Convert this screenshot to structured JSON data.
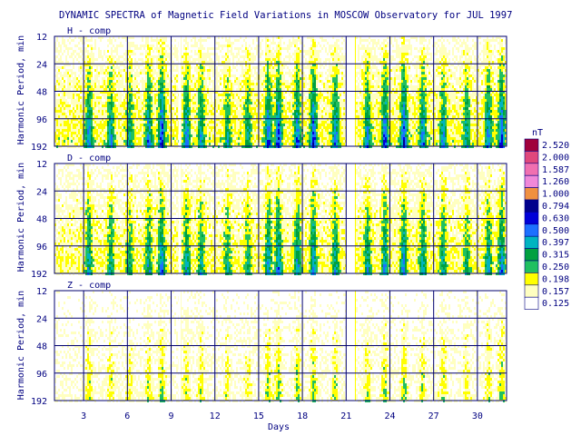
{
  "chart_data": {
    "type": "heatmap",
    "title": "DYNAMIC SPECTRA of Magnetic Field Variations in MOSCOW Observatory for JUL 1997",
    "xlabel": "Days",
    "ylabel": "Harmonic Period, min",
    "x_ticks": [
      "3",
      "6",
      "9",
      "12",
      "15",
      "18",
      "21",
      "24",
      "27",
      "30"
    ],
    "x_range": [
      1,
      32
    ],
    "y_ticks": [
      "12",
      "24",
      "48",
      "96",
      "192"
    ],
    "y_scale": "log2",
    "y_range": [
      12,
      192
    ],
    "data_gaps_days": [
      [
        9.5,
        9.7
      ],
      [
        21.0,
        21.6
      ]
    ],
    "panels": [
      {
        "name": "H - comp",
        "label": "H - comp",
        "activity": 1.0
      },
      {
        "name": "D - comp",
        "label": "D - comp",
        "activity": 0.85
      },
      {
        "name": "Z - comp",
        "label": "Z - comp",
        "activity": 0.45
      }
    ],
    "active_days": [
      {
        "day": 3.3,
        "strength": 0.8
      },
      {
        "day": 4.8,
        "strength": 0.7
      },
      {
        "day": 6.1,
        "strength": 0.6
      },
      {
        "day": 7.4,
        "strength": 0.8
      },
      {
        "day": 8.3,
        "strength": 1.0
      },
      {
        "day": 10.0,
        "strength": 0.8
      },
      {
        "day": 11.0,
        "strength": 0.7
      },
      {
        "day": 12.8,
        "strength": 0.6
      },
      {
        "day": 14.2,
        "strength": 0.6
      },
      {
        "day": 15.6,
        "strength": 0.9
      },
      {
        "day": 16.3,
        "strength": 1.0
      },
      {
        "day": 17.6,
        "strength": 0.9
      },
      {
        "day": 18.7,
        "strength": 1.0
      },
      {
        "day": 20.2,
        "strength": 0.8
      },
      {
        "day": 22.4,
        "strength": 0.8
      },
      {
        "day": 23.6,
        "strength": 0.9
      },
      {
        "day": 24.9,
        "strength": 1.0
      },
      {
        "day": 26.2,
        "strength": 0.8
      },
      {
        "day": 27.6,
        "strength": 0.7
      },
      {
        "day": 29.2,
        "strength": 0.6
      },
      {
        "day": 30.7,
        "strength": 0.8
      },
      {
        "day": 31.6,
        "strength": 1.0
      }
    ],
    "colorbar": {
      "unit": "nT",
      "levels": [
        "2.520",
        "2.000",
        "1.587",
        "1.260",
        "1.000",
        "0.794",
        "0.630",
        "0.500",
        "0.397",
        "0.315",
        "0.250",
        "0.198",
        "0.157",
        "0.125"
      ],
      "colors": [
        "#a0003c",
        "#e0487c",
        "#f070b0",
        "#f088d8",
        "#f09040",
        "#00008c",
        "#0000d8",
        "#1c70ff",
        "#00b4c0",
        "#00a040",
        "#20c060",
        "#ffff00",
        "#ffffc0",
        "#ffffff"
      ]
    },
    "grid": true
  }
}
